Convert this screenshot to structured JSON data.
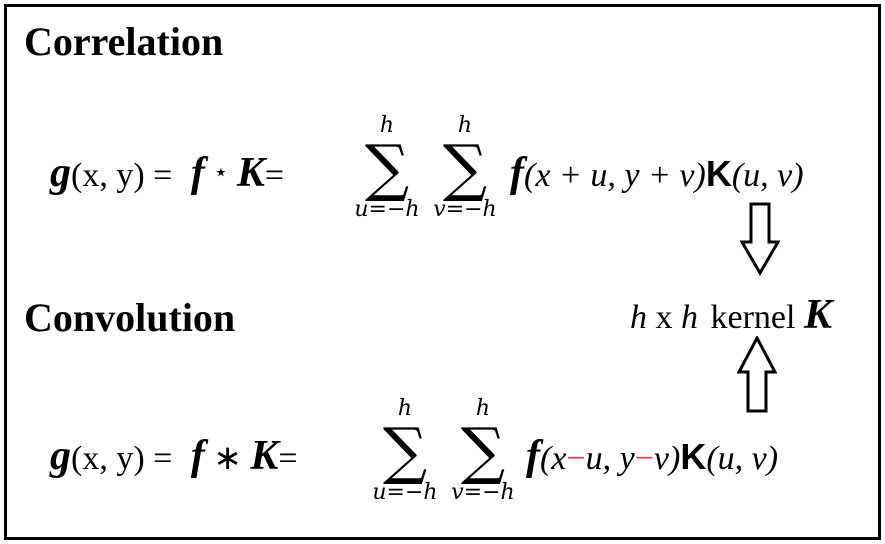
{
  "correlation": {
    "heading": "Correlation",
    "g": "g",
    "args": "(x, y) =",
    "f": "f",
    "op": "⋆",
    "K": "K",
    "eq": "=",
    "sum1": {
      "upper": "h",
      "sym": "∑",
      "lower": "u=−h"
    },
    "sum2": {
      "upper": "h",
      "sym": "∑",
      "lower": "v=−h"
    },
    "f2": "f",
    "inner_a": "(x + u, y + v)",
    "Kbold": "K",
    "kargs": "(u, v)"
  },
  "convolution": {
    "heading": "Convolution",
    "g": "g",
    "args": "(x, y) =",
    "f": "f",
    "op": "∗",
    "K": "K",
    "eq": "=",
    "sum1": {
      "upper": "h",
      "sym": "∑",
      "lower": "u=−h"
    },
    "sum2": {
      "upper": "h",
      "sym": "∑",
      "lower": "v=−h"
    },
    "f2": "f",
    "inner_1": "(x",
    "minus1": "−",
    "inner_2": "u, y",
    "minus2": "−",
    "inner_3": "v)",
    "Kbold": "K",
    "kargs": "(u, v)"
  },
  "kernel_label": {
    "h1": "h",
    "x": "x",
    "h2": "h",
    "word": "kernel",
    "K": "K"
  },
  "colors": {
    "minus_highlight": "#e8383d"
  },
  "icons": [
    "arrow-down-icon",
    "arrow-up-icon"
  ]
}
